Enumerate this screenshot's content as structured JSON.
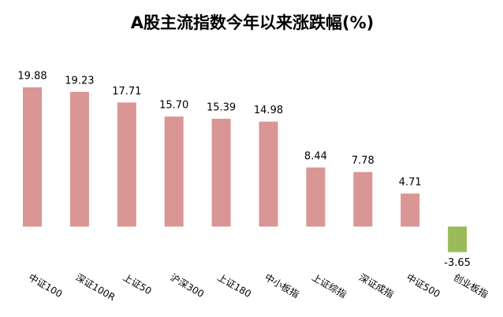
{
  "chart_data": {
    "type": "bar",
    "title": "A股主流指数今年以来涨跌幅(%)",
    "categories": [
      "中证100",
      "深证100R",
      "上证50",
      "沪深300",
      "上证180",
      "中小板指",
      "上证综指",
      "深证成指",
      "中证500",
      "创业板指"
    ],
    "values": [
      19.88,
      19.23,
      17.71,
      15.7,
      15.39,
      14.98,
      8.44,
      7.78,
      4.71,
      -3.65
    ],
    "value_labels": [
      "19.88",
      "19.23",
      "17.71",
      "15.70",
      "15.39",
      "14.98",
      "8.44",
      "7.78",
      "4.71",
      "-3.65"
    ],
    "color": "#d99694",
    "negative_color": "#9bbb59"
  }
}
